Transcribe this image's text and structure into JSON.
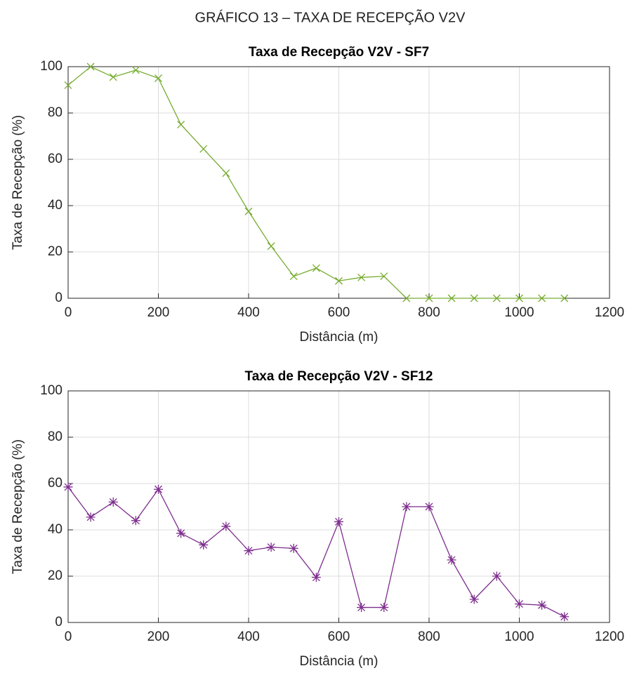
{
  "title": "GRÁFICO 13 – TAXA DE RECEPÇÃO V2V",
  "chart_data": [
    {
      "type": "line",
      "title": "Taxa de Recepção V2V - SF7",
      "x_label": "Distância (m)",
      "y_label": "Taxa de Recepção (%)",
      "x": [
        0,
        50,
        100,
        150,
        200,
        250,
        300,
        350,
        400,
        450,
        500,
        550,
        600,
        650,
        700,
        750,
        800,
        850,
        900,
        950,
        1000,
        1050,
        1100
      ],
      "values": [
        92,
        100,
        95.5,
        98.5,
        95,
        75,
        64.5,
        54,
        37.5,
        22.5,
        9.5,
        13,
        7.5,
        9,
        9.5,
        0,
        0,
        0,
        0,
        0,
        0,
        0,
        0
      ],
      "color": "#77ac30",
      "marker": "x",
      "xlim": [
        0,
        1200
      ],
      "xticks": [
        0,
        200,
        400,
        600,
        800,
        1000,
        1200
      ],
      "ylim": [
        0,
        100
      ],
      "yticks": [
        0,
        20,
        40,
        60,
        80,
        100
      ],
      "grid": true
    },
    {
      "type": "line",
      "title": "Taxa de Recepção V2V - SF12",
      "x_label": "Distância (m)",
      "y_label": "Taxa de Recepção (%)",
      "x": [
        0,
        50,
        100,
        150,
        200,
        250,
        300,
        350,
        400,
        450,
        500,
        550,
        600,
        650,
        700,
        750,
        800,
        850,
        900,
        950,
        1000,
        1050,
        1100
      ],
      "values": [
        58.5,
        45.5,
        52,
        44,
        57.5,
        38.5,
        33.5,
        41.5,
        31,
        32.5,
        32,
        19.5,
        43.5,
        6.5,
        6.5,
        50,
        50,
        27,
        10,
        20,
        8,
        7.5,
        2.5
      ],
      "color": "#7e2f8e",
      "marker": "asterisk",
      "xlim": [
        0,
        1200
      ],
      "xticks": [
        0,
        200,
        400,
        600,
        800,
        1000,
        1200
      ],
      "ylim": [
        0,
        100
      ],
      "yticks": [
        0,
        20,
        40,
        60,
        80,
        100
      ],
      "grid": true
    }
  ]
}
